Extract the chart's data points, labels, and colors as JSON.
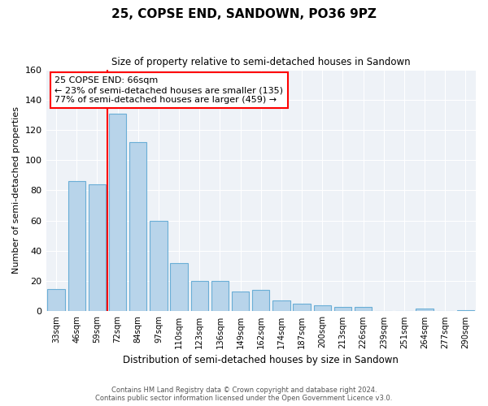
{
  "title": "25, COPSE END, SANDOWN, PO36 9PZ",
  "subtitle": "Size of property relative to semi-detached houses in Sandown",
  "xlabel": "Distribution of semi-detached houses by size in Sandown",
  "ylabel": "Number of semi-detached properties",
  "categories": [
    "33sqm",
    "46sqm",
    "59sqm",
    "72sqm",
    "84sqm",
    "97sqm",
    "110sqm",
    "123sqm",
    "136sqm",
    "149sqm",
    "162sqm",
    "174sqm",
    "187sqm",
    "200sqm",
    "213sqm",
    "226sqm",
    "239sqm",
    "251sqm",
    "264sqm",
    "277sqm",
    "290sqm"
  ],
  "values": [
    15,
    86,
    84,
    131,
    112,
    60,
    32,
    20,
    20,
    13,
    14,
    7,
    5,
    4,
    3,
    3,
    0,
    0,
    2,
    0,
    1
  ],
  "bar_color": "#b8d4ea",
  "bar_edge_color": "#6aaed6",
  "red_line_x": 2.5,
  "annotation_text_line1": "25 COPSE END: 66sqm",
  "annotation_text_line2": "← 23% of semi-detached houses are smaller (135)",
  "annotation_text_line3": "77% of semi-detached houses are larger (459) →",
  "ylim": [
    0,
    160
  ],
  "yticks": [
    0,
    20,
    40,
    60,
    80,
    100,
    120,
    140,
    160
  ],
  "bg_color": "#eef2f7",
  "footer_line1": "Contains HM Land Registry data © Crown copyright and database right 2024.",
  "footer_line2": "Contains public sector information licensed under the Open Government Licence v3.0."
}
